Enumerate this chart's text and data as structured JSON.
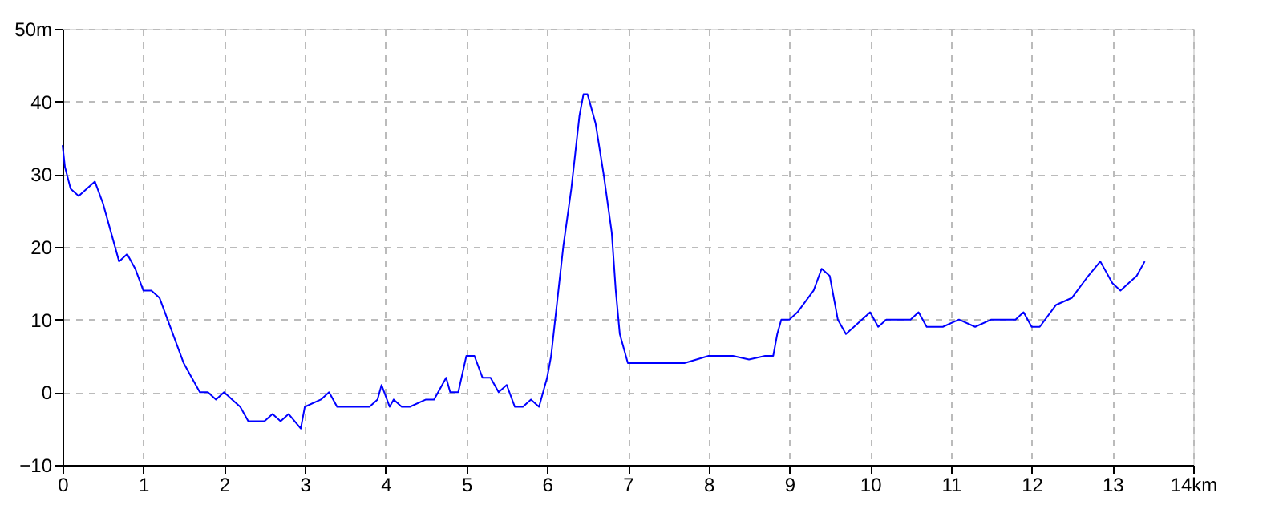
{
  "chart_data": {
    "type": "line",
    "x": [
      0,
      0.03,
      0.1,
      0.2,
      0.3,
      0.4,
      0.5,
      0.6,
      0.7,
      0.8,
      0.9,
      1.0,
      1.1,
      1.2,
      1.3,
      1.4,
      1.5,
      1.6,
      1.7,
      1.8,
      1.9,
      2.0,
      2.1,
      2.2,
      2.3,
      2.4,
      2.5,
      2.6,
      2.7,
      2.8,
      2.95,
      3.0,
      3.2,
      3.3,
      3.4,
      3.5,
      3.6,
      3.8,
      3.9,
      3.95,
      4.05,
      4.1,
      4.2,
      4.3,
      4.5,
      4.6,
      4.75,
      4.8,
      4.9,
      5.0,
      5.1,
      5.2,
      5.3,
      5.4,
      5.5,
      5.6,
      5.7,
      5.8,
      5.9,
      6.0,
      6.05,
      6.1,
      6.15,
      6.2,
      6.3,
      6.35,
      6.4,
      6.45,
      6.5,
      6.6,
      6.7,
      6.8,
      6.85,
      6.9,
      7.0,
      7.3,
      7.5,
      7.7,
      8.0,
      8.3,
      8.5,
      8.7,
      8.8,
      8.85,
      8.9,
      9.0,
      9.1,
      9.3,
      9.4,
      9.5,
      9.6,
      9.7,
      9.8,
      10.0,
      10.1,
      10.2,
      10.3,
      10.5,
      10.6,
      10.7,
      10.9,
      11.1,
      11.3,
      11.5,
      11.8,
      11.9,
      12.0,
      12.1,
      12.3,
      12.5,
      12.7,
      12.85,
      13.0,
      13.1,
      13.2,
      13.3,
      13.4
    ],
    "series": [
      {
        "color": "#0000ff",
        "values": [
          34,
          31,
          28,
          27,
          28,
          29,
          26,
          22,
          18,
          19,
          17,
          14,
          14,
          13,
          10,
          7,
          4,
          2,
          0,
          0,
          -1,
          0,
          -1,
          -2,
          -4,
          -4,
          -4,
          -3,
          -4,
          -3,
          -5,
          -2,
          -1,
          0,
          -2,
          -2,
          -2,
          -2,
          -1,
          1,
          -2,
          -1,
          -2,
          -2,
          -1,
          -1,
          2,
          0,
          0,
          5,
          5,
          2,
          2,
          0,
          1,
          -2,
          -2,
          -1,
          -2,
          2,
          5,
          10,
          15,
          20,
          28,
          33,
          38,
          41,
          41,
          37,
          30,
          22,
          14,
          8,
          4,
          4,
          4,
          4,
          5,
          5,
          4.5,
          5,
          5,
          8,
          10,
          10,
          11,
          14,
          17,
          16,
          10,
          8,
          9,
          11,
          9,
          10,
          10,
          10,
          11,
          9,
          9,
          10,
          9,
          10,
          10,
          11,
          9,
          9,
          12,
          13,
          16,
          18,
          15,
          14,
          15,
          16,
          18
        ]
      }
    ],
    "xlim": [
      0,
      14
    ],
    "xticks": [
      0,
      1,
      2,
      3,
      4,
      5,
      6,
      7,
      8,
      9,
      10,
      11,
      12,
      13,
      {
        "value": 14,
        "label": "14km"
      }
    ],
    "ylim": [
      -10,
      50
    ],
    "yticks": [
      -10,
      0,
      10,
      20,
      30,
      40,
      {
        "value": 50,
        "label": "50m"
      }
    ],
    "grid": true,
    "marker": "none",
    "line_style": "solid"
  }
}
